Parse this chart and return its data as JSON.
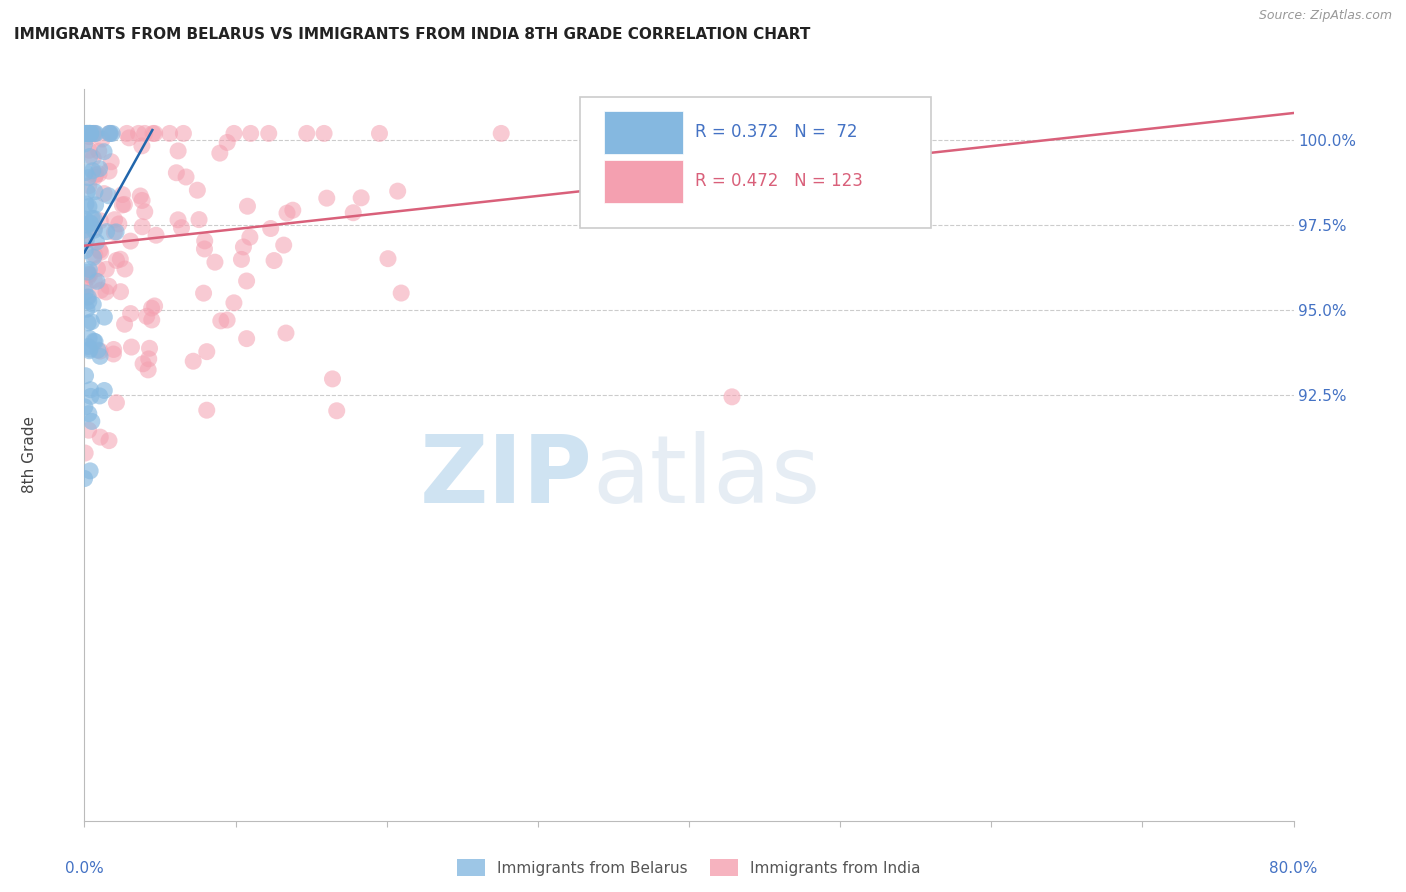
{
  "title": "IMMIGRANTS FROM BELARUS VS IMMIGRANTS FROM INDIA 8TH GRADE CORRELATION CHART",
  "source": "Source: ZipAtlas.com",
  "ylabel": "8th Grade",
  "ylabel_right_labels": [
    "92.5%",
    "95.0%",
    "97.5%",
    "100.0%"
  ],
  "ylabel_right_ticks": [
    92.5,
    95.0,
    97.5,
    100.0
  ],
  "legend_blue_r": 0.372,
  "legend_blue_n": 72,
  "legend_pink_r": 0.472,
  "legend_pink_n": 123,
  "blue_color": "#85b8e0",
  "pink_color": "#f4a0b0",
  "blue_line_color": "#2166ac",
  "pink_line_color": "#d9607a",
  "watermark_zip": "ZIP",
  "watermark_atlas": "atlas",
  "background_color": "#ffffff",
  "grid_color": "#cccccc",
  "title_color": "#222222",
  "axis_label_color": "#4472c4",
  "x_min": 0,
  "x_max": 80,
  "y_min": 80,
  "y_max": 101.5,
  "blue_line_x0": 0.0,
  "blue_line_y0": 96.7,
  "blue_line_x1": 4.5,
  "blue_line_y1": 100.3,
  "pink_line_x0": 0.0,
  "pink_line_y0": 96.9,
  "pink_line_x1": 80.0,
  "pink_line_y1": 100.8
}
